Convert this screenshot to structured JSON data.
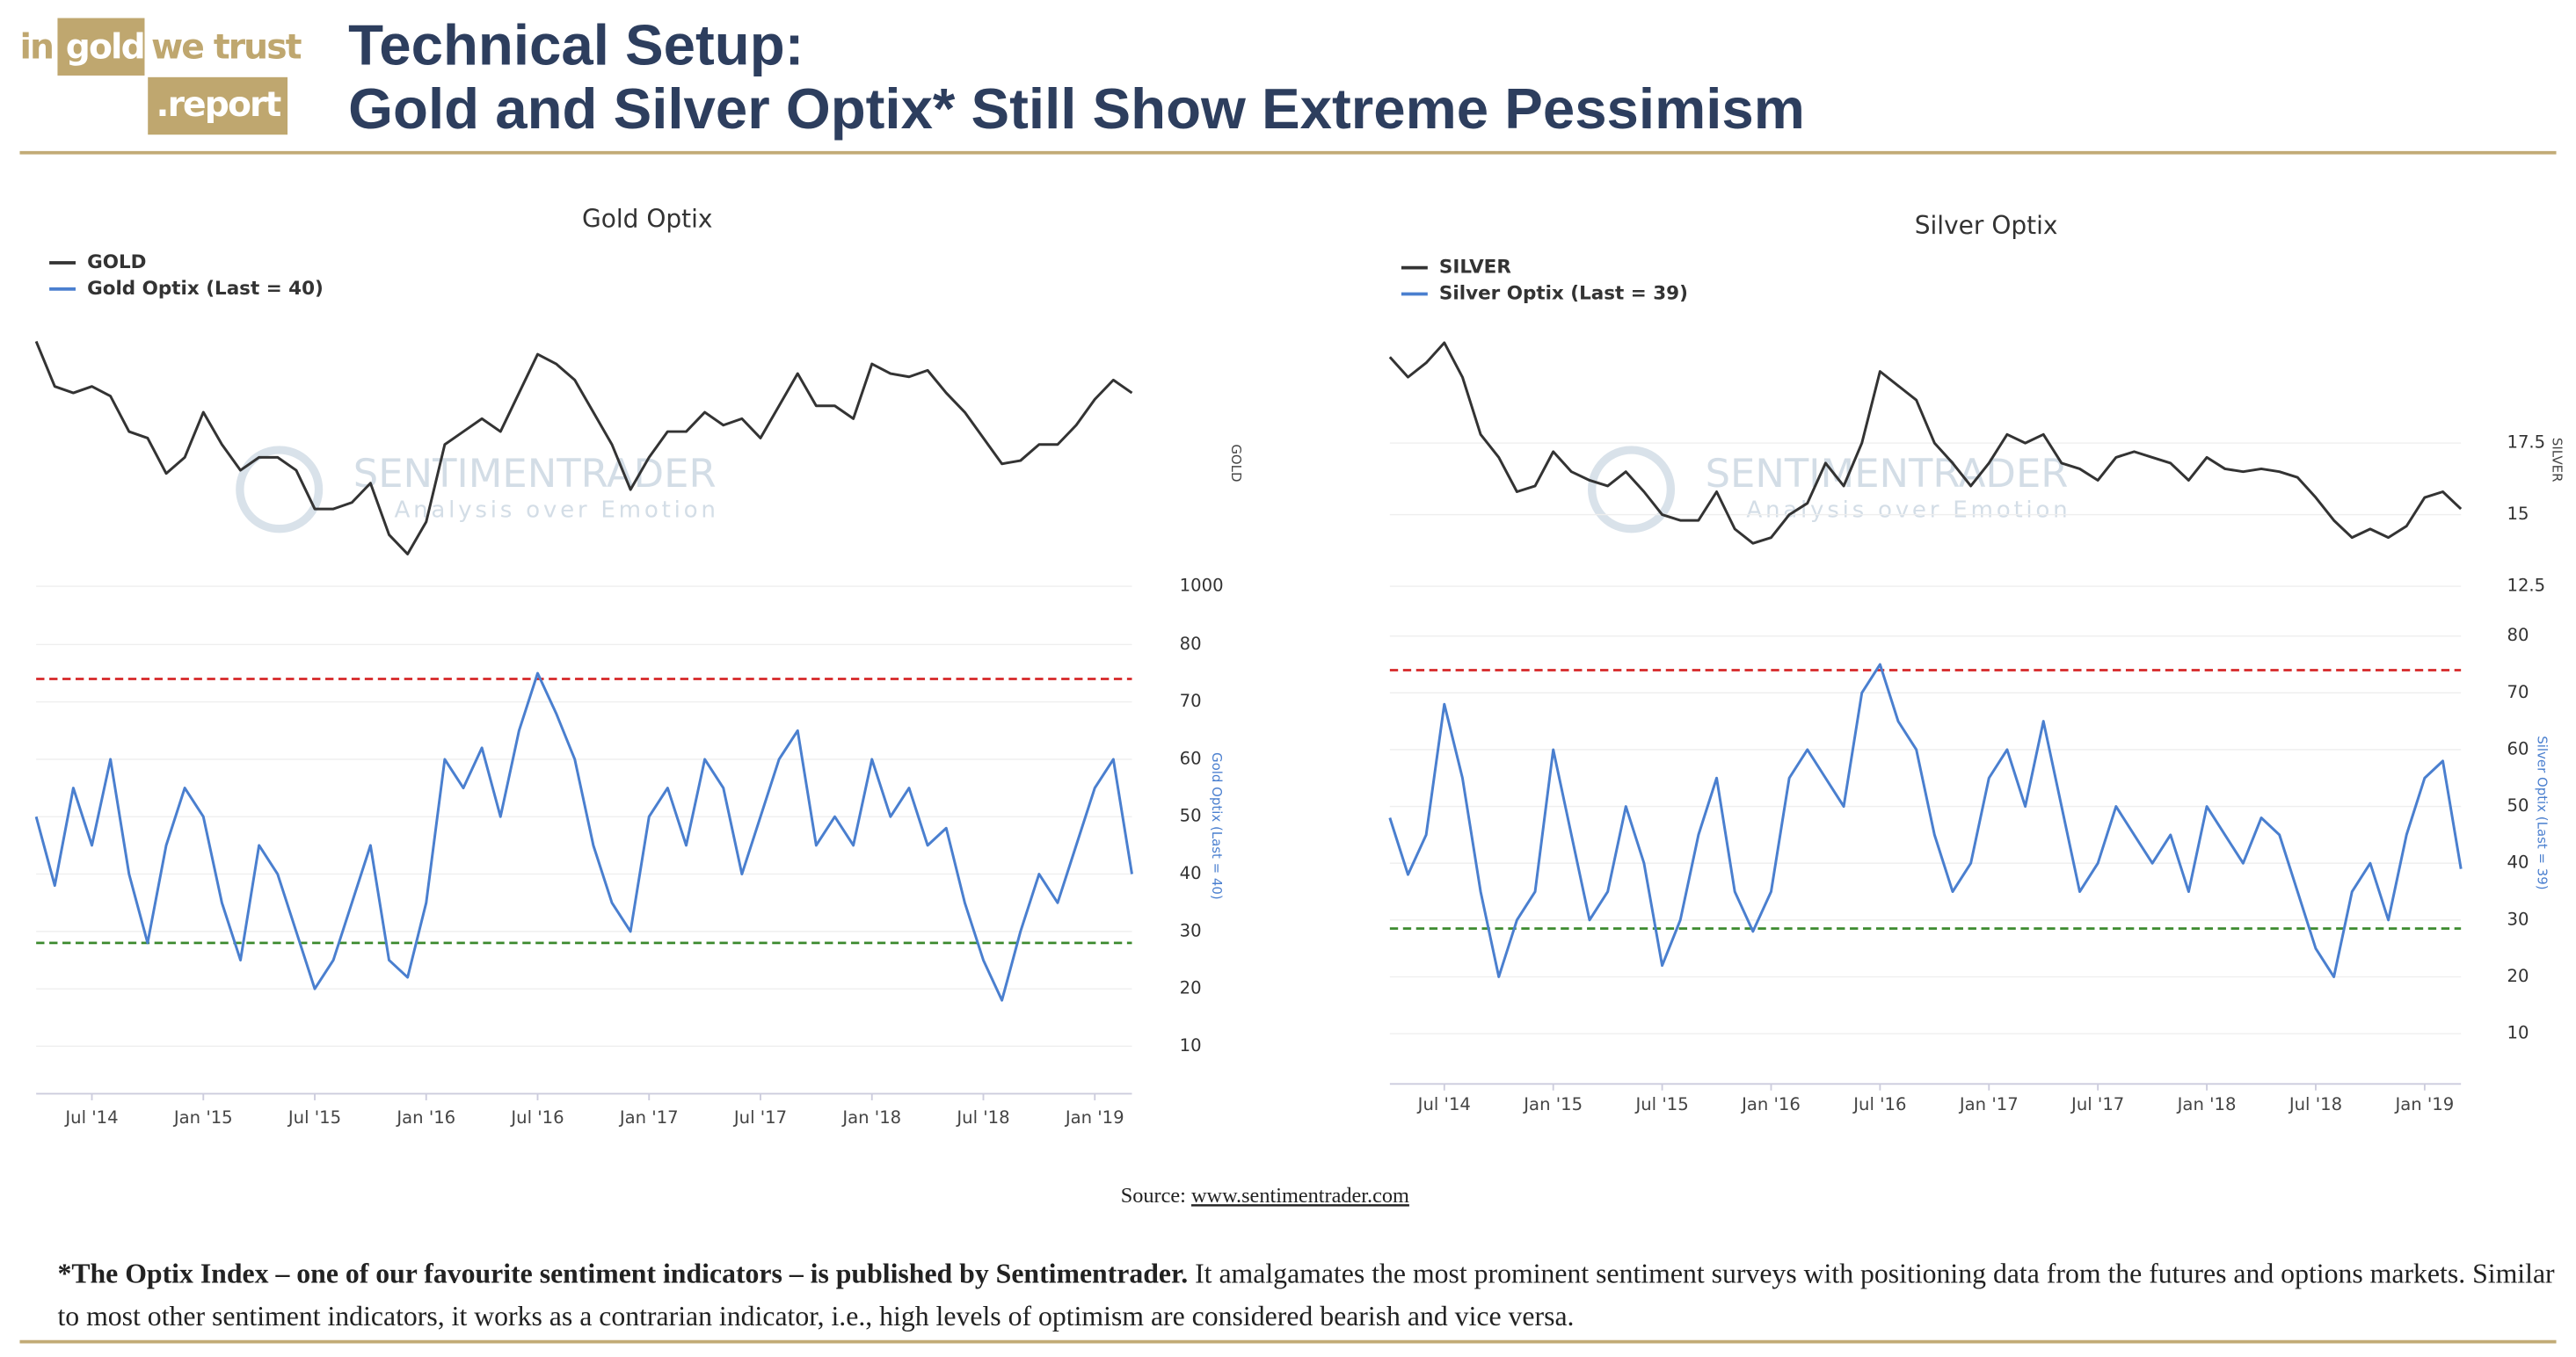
{
  "header": {
    "logo": [
      "in",
      "gold",
      "we trust",
      ".report"
    ],
    "title": [
      "Technical Setup:",
      "Gold and Silver Optix* Still Show Extreme Pessimism"
    ]
  },
  "watermark": [
    "SENTIMENTRADER",
    "Analysis over Emotion"
  ],
  "chart_data": [
    {
      "type": "line",
      "title": "Gold Optix",
      "ylabel": "GOLD",
      "y2label": "Gold Optix (Last = 40)",
      "x": [
        "2014-04",
        "2014-05",
        "2014-06",
        "2014-07",
        "2014-08",
        "2014-09",
        "2014-10",
        "2014-11",
        "2014-12",
        "2015-01",
        "2015-02",
        "2015-03",
        "2015-04",
        "2015-05",
        "2015-06",
        "2015-07",
        "2015-08",
        "2015-09",
        "2015-10",
        "2015-11",
        "2015-12",
        "2016-01",
        "2016-02",
        "2016-03",
        "2016-04",
        "2016-05",
        "2016-06",
        "2016-07",
        "2016-08",
        "2016-09",
        "2016-10",
        "2016-11",
        "2016-12",
        "2017-01",
        "2017-02",
        "2017-03",
        "2017-04",
        "2017-05",
        "2017-06",
        "2017-07",
        "2017-08",
        "2017-09",
        "2017-10",
        "2017-11",
        "2017-12",
        "2018-01",
        "2018-02",
        "2018-03",
        "2018-04",
        "2018-05",
        "2018-06",
        "2018-07",
        "2018-08",
        "2018-09",
        "2018-10",
        "2018-11",
        "2018-12",
        "2019-01",
        "2019-02",
        "2019-03"
      ],
      "xticks": [
        {
          "value": "2014-07",
          "label": "Jul '14"
        },
        {
          "value": "2015-01",
          "label": "Jan '15"
        },
        {
          "value": "2015-07",
          "label": "Jul '15"
        },
        {
          "value": "2016-01",
          "label": "Jan '16"
        },
        {
          "value": "2016-07",
          "label": "Jul '16"
        },
        {
          "value": "2017-01",
          "label": "Jan '17"
        },
        {
          "value": "2017-07",
          "label": "Jul '17"
        },
        {
          "value": "2018-01",
          "label": "Jan '18"
        },
        {
          "value": "2018-07",
          "label": "Jul '18"
        },
        {
          "value": "2019-01",
          "label": "Jan '19"
        }
      ],
      "series": [
        {
          "name": "GOLD",
          "color": "#333333",
          "axis": "y",
          "values": [
            1380,
            1310,
            1300,
            1310,
            1295,
            1240,
            1230,
            1175,
            1200,
            1270,
            1220,
            1180,
            1200,
            1200,
            1180,
            1120,
            1120,
            1130,
            1160,
            1080,
            1050,
            1100,
            1220,
            1240,
            1260,
            1240,
            1300,
            1360,
            1345,
            1320,
            1270,
            1220,
            1150,
            1200,
            1240,
            1240,
            1270,
            1250,
            1260,
            1230,
            1280,
            1330,
            1280,
            1280,
            1260,
            1345,
            1330,
            1325,
            1335,
            1300,
            1270,
            1230,
            1190,
            1195,
            1220,
            1220,
            1250,
            1290,
            1320,
            1300
          ]
        },
        {
          "name": "Gold Optix (Last = 40)",
          "color": "#4a7fcf",
          "axis": "y2",
          "values": [
            50,
            38,
            55,
            45,
            60,
            40,
            28,
            45,
            55,
            50,
            35,
            25,
            45,
            40,
            30,
            20,
            25,
            35,
            45,
            25,
            22,
            35,
            60,
            55,
            62,
            50,
            65,
            75,
            68,
            60,
            45,
            35,
            30,
            50,
            55,
            45,
            60,
            55,
            40,
            50,
            60,
            65,
            45,
            50,
            45,
            60,
            50,
            55,
            45,
            48,
            35,
            25,
            18,
            30,
            40,
            35,
            45,
            55,
            60,
            40
          ]
        }
      ],
      "ylim": [
        1000,
        1400
      ],
      "yticks": [
        1000
      ],
      "y2lim": [
        0,
        85
      ],
      "y2ticks": [
        10,
        20,
        30,
        40,
        50,
        60,
        70,
        80
      ],
      "reference_lines": [
        {
          "value": 74,
          "color": "#d62728"
        },
        {
          "value": 28,
          "color": "#3c8a2e"
        }
      ]
    },
    {
      "type": "line",
      "title": "Silver Optix",
      "ylabel": "SILVER",
      "y2label": "Silver Optix (Last = 39)",
      "x": [
        "2014-04",
        "2014-05",
        "2014-06",
        "2014-07",
        "2014-08",
        "2014-09",
        "2014-10",
        "2014-11",
        "2014-12",
        "2015-01",
        "2015-02",
        "2015-03",
        "2015-04",
        "2015-05",
        "2015-06",
        "2015-07",
        "2015-08",
        "2015-09",
        "2015-10",
        "2015-11",
        "2015-12",
        "2016-01",
        "2016-02",
        "2016-03",
        "2016-04",
        "2016-05",
        "2016-06",
        "2016-07",
        "2016-08",
        "2016-09",
        "2016-10",
        "2016-11",
        "2016-12",
        "2017-01",
        "2017-02",
        "2017-03",
        "2017-04",
        "2017-05",
        "2017-06",
        "2017-07",
        "2017-08",
        "2017-09",
        "2017-10",
        "2017-11",
        "2017-12",
        "2018-01",
        "2018-02",
        "2018-03",
        "2018-04",
        "2018-05",
        "2018-06",
        "2018-07",
        "2018-08",
        "2018-09",
        "2018-10",
        "2018-11",
        "2018-12",
        "2019-01",
        "2019-02",
        "2019-03"
      ],
      "xticks": [
        {
          "value": "2014-07",
          "label": "Jul '14"
        },
        {
          "value": "2015-01",
          "label": "Jan '15"
        },
        {
          "value": "2015-07",
          "label": "Jul '15"
        },
        {
          "value": "2016-01",
          "label": "Jan '16"
        },
        {
          "value": "2016-07",
          "label": "Jul '16"
        },
        {
          "value": "2017-01",
          "label": "Jan '17"
        },
        {
          "value": "2017-07",
          "label": "Jul '17"
        },
        {
          "value": "2018-01",
          "label": "Jan '18"
        },
        {
          "value": "2018-07",
          "label": "Jul '18"
        },
        {
          "value": "2019-01",
          "label": "Jan '19"
        }
      ],
      "series": [
        {
          "name": "SILVER",
          "color": "#333333",
          "axis": "y",
          "values": [
            20.5,
            19.8,
            20.3,
            21.0,
            19.8,
            17.8,
            17.0,
            15.8,
            16.0,
            17.2,
            16.5,
            16.2,
            16.0,
            16.5,
            15.8,
            15.0,
            14.8,
            14.8,
            15.8,
            14.5,
            14.0,
            14.2,
            15.0,
            15.4,
            16.8,
            16.0,
            17.5,
            20.0,
            19.5,
            19.0,
            17.5,
            16.8,
            16.0,
            16.8,
            17.8,
            17.5,
            17.8,
            16.8,
            16.6,
            16.2,
            17.0,
            17.2,
            17.0,
            16.8,
            16.2,
            17.0,
            16.6,
            16.5,
            16.6,
            16.5,
            16.3,
            15.6,
            14.8,
            14.2,
            14.5,
            14.2,
            14.6,
            15.6,
            15.8,
            15.2
          ]
        },
        {
          "name": "Silver Optix (Last = 39)",
          "color": "#4a7fcf",
          "axis": "y2",
          "values": [
            48,
            38,
            45,
            68,
            55,
            35,
            20,
            30,
            35,
            60,
            45,
            30,
            35,
            50,
            40,
            22,
            30,
            45,
            55,
            35,
            28,
            35,
            55,
            60,
            55,
            50,
            70,
            75,
            65,
            60,
            45,
            35,
            40,
            55,
            60,
            50,
            65,
            50,
            35,
            40,
            50,
            45,
            40,
            45,
            35,
            50,
            45,
            40,
            48,
            45,
            35,
            25,
            20,
            35,
            40,
            30,
            45,
            55,
            58,
            39
          ]
        }
      ],
      "ylim": [
        12.5,
        21.5
      ],
      "yticks": [
        12.5,
        15,
        17.5
      ],
      "y2lim": [
        0,
        85
      ],
      "y2ticks": [
        10,
        20,
        30,
        40,
        50,
        60,
        70,
        80
      ],
      "reference_lines": [
        {
          "value": 74,
          "color": "#d62728"
        },
        {
          "value": 28.5,
          "color": "#3c8a2e"
        }
      ]
    }
  ],
  "source": {
    "label": "Source:",
    "link": "www.sentimentrader.com"
  },
  "footnote": {
    "bold": "*The Optix Index – one of our favourite sentiment indicators – is published by Sentimentrader.",
    "text": "It amalgamates the most prominent sentiment surveys with positioning data from the futures and options markets. Similar to most other sentiment indicators, it works as a contrarian indicator, i.e., high levels of optimism are considered bearish and vice versa."
  }
}
